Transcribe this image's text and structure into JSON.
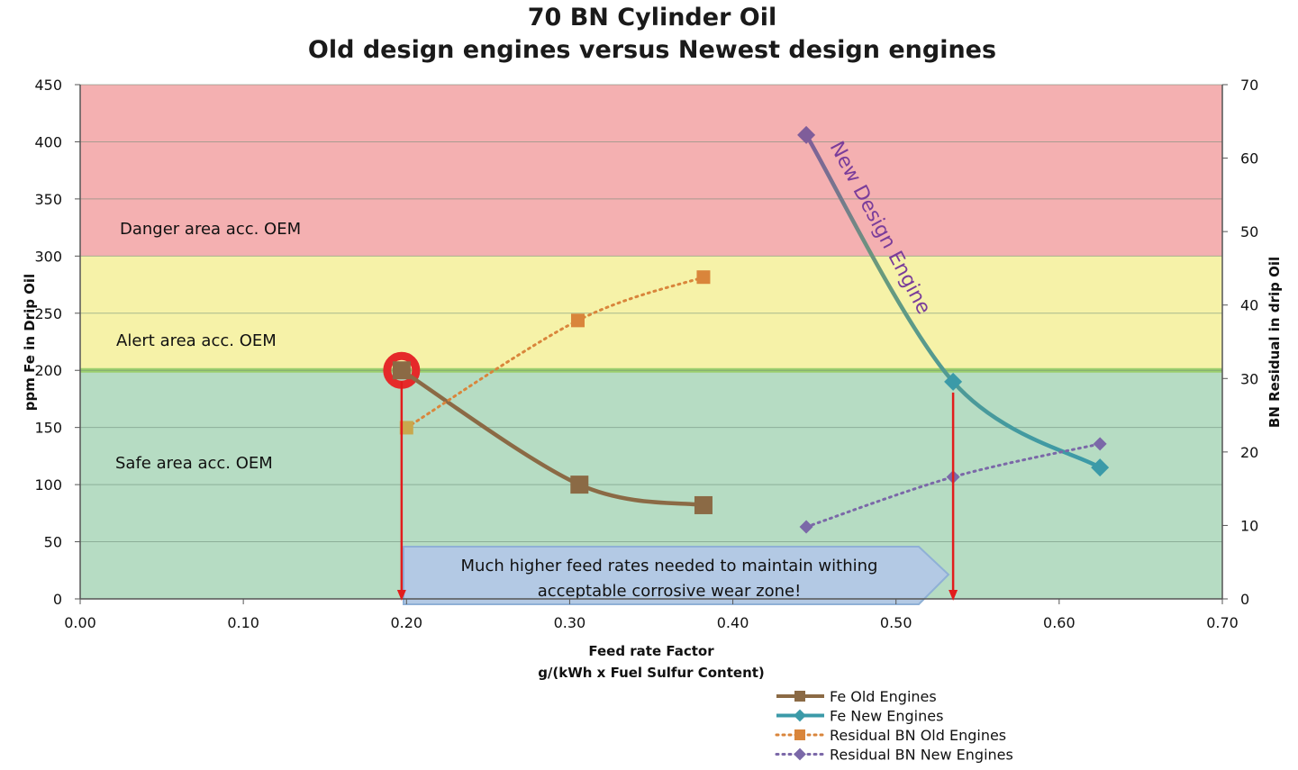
{
  "chart_data": {
    "type": "line",
    "title": "70 BN Cylinder Oil",
    "subtitle": "Old design engines versus Newest design engines",
    "xlabel_line1": "Feed rate Factor",
    "xlabel_line2": "g/(kWh x Fuel Sulfur Content)",
    "ylabel": "ppm Fe in Drip Oil",
    "y2label": "BN Residual in drip Oil",
    "xlim": [
      0,
      0.7
    ],
    "ylim": [
      0,
      450
    ],
    "y2lim": [
      0,
      70
    ],
    "x_ticks": [
      "0.00",
      "0.10",
      "0.20",
      "0.30",
      "0.40",
      "0.50",
      "0.60",
      "0.70"
    ],
    "y_ticks": [
      "0",
      "50",
      "100",
      "150",
      "200",
      "250",
      "300",
      "350",
      "400",
      "450"
    ],
    "y2_ticks": [
      "0",
      "10",
      "20",
      "30",
      "40",
      "50",
      "60",
      "70"
    ],
    "grid": "horizontal",
    "legend_position": "bottom-right",
    "zones": [
      {
        "label": "Danger area acc. OEM",
        "from": 300,
        "to": 450,
        "color": "#f4b0b1"
      },
      {
        "label": "Alert area acc. OEM",
        "from": 200,
        "to": 300,
        "color": "#f6f2a8"
      },
      {
        "label": "Safe area acc. OEM",
        "from": 0,
        "to": 200,
        "color": "#b6dcc3"
      }
    ],
    "series": [
      {
        "name": "Fe Old Engines",
        "axis": "left",
        "style": "solid",
        "marker": "square",
        "color": "#8b6a45",
        "x": [
          0.197,
          0.306,
          0.382
        ],
        "y": [
          200,
          100,
          82
        ]
      },
      {
        "name": "Fe New Engines",
        "axis": "left",
        "style": "solid",
        "marker": "diamond",
        "color": "#3b9aa8",
        "x": [
          0.445,
          0.535,
          0.625
        ],
        "y": [
          406,
          190,
          115
        ]
      },
      {
        "name": "Residual BN Old Engines",
        "axis": "right",
        "style": "dotted",
        "marker": "square",
        "color": "#d9853b",
        "x": [
          0.2,
          0.305,
          0.382
        ],
        "y": [
          23.3,
          37.9,
          43.8
        ]
      },
      {
        "name": "Residual BN New Engines",
        "axis": "right",
        "style": "dotted",
        "marker": "diamond",
        "color": "#7b68a8",
        "x": [
          0.445,
          0.535,
          0.625
        ],
        "y": [
          9.8,
          16.6,
          21.1
        ]
      }
    ],
    "annotations": {
      "new_design_label": "New Design Engine",
      "callout_line1": "Much higher feed rates needed to maintain withing",
      "callout_line2": "acceptable corrosive wear zone!"
    }
  }
}
